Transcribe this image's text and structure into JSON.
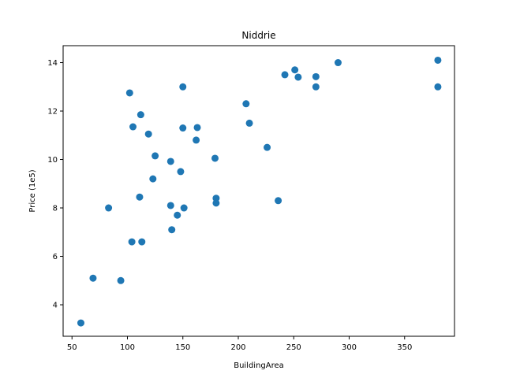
{
  "chart_data": {
    "type": "scatter",
    "title": "Niddrie",
    "xlabel": "BuildingArea",
    "ylabel": "Price (1e5)",
    "xlim": [
      42,
      395
    ],
    "ylim": [
      2.7,
      14.7
    ],
    "xticks": [
      50,
      100,
      150,
      200,
      250,
      300,
      350
    ],
    "yticks": [
      4,
      6,
      8,
      10,
      12,
      14
    ],
    "grid": false,
    "marker_color": "#1f77b4",
    "points": [
      {
        "x": 58,
        "y": 3.25
      },
      {
        "x": 69,
        "y": 5.1
      },
      {
        "x": 83,
        "y": 8.0
      },
      {
        "x": 94,
        "y": 5.0
      },
      {
        "x": 102,
        "y": 12.75
      },
      {
        "x": 104,
        "y": 6.6
      },
      {
        "x": 105,
        "y": 11.35
      },
      {
        "x": 111,
        "y": 8.45
      },
      {
        "x": 112,
        "y": 11.85
      },
      {
        "x": 113,
        "y": 6.6
      },
      {
        "x": 119,
        "y": 11.05
      },
      {
        "x": 123,
        "y": 9.2
      },
      {
        "x": 125,
        "y": 10.15
      },
      {
        "x": 139,
        "y": 9.92
      },
      {
        "x": 139,
        "y": 8.1
      },
      {
        "x": 140,
        "y": 7.1
      },
      {
        "x": 145,
        "y": 7.7
      },
      {
        "x": 148,
        "y": 9.5
      },
      {
        "x": 150,
        "y": 13.0
      },
      {
        "x": 150,
        "y": 11.3
      },
      {
        "x": 151,
        "y": 8.0
      },
      {
        "x": 162,
        "y": 10.8
      },
      {
        "x": 163,
        "y": 11.32
      },
      {
        "x": 179,
        "y": 10.05
      },
      {
        "x": 180,
        "y": 8.4
      },
      {
        "x": 180,
        "y": 8.2
      },
      {
        "x": 207,
        "y": 12.3
      },
      {
        "x": 210,
        "y": 11.5
      },
      {
        "x": 226,
        "y": 10.5
      },
      {
        "x": 236,
        "y": 8.3
      },
      {
        "x": 242,
        "y": 13.5
      },
      {
        "x": 251,
        "y": 13.7
      },
      {
        "x": 254,
        "y": 13.4
      },
      {
        "x": 270,
        "y": 13.42
      },
      {
        "x": 270,
        "y": 13.0
      },
      {
        "x": 290,
        "y": 14.0
      },
      {
        "x": 380,
        "y": 14.1
      },
      {
        "x": 380,
        "y": 13.0
      }
    ]
  }
}
